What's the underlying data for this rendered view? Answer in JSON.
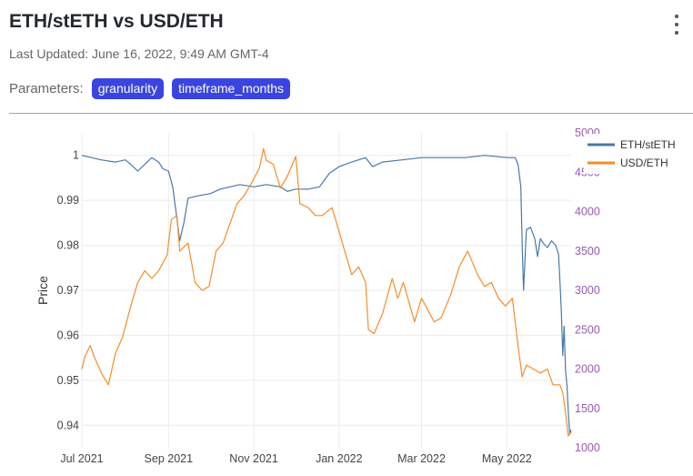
{
  "header": {
    "title": "ETH/stETH vs USD/ETH",
    "last_updated": "Last Updated: June 16, 2022, 9:49 AM GMT-4",
    "parameters_label": "Parameters:",
    "parameters": [
      "granularity",
      "timeframe_months"
    ],
    "menu_icon": "kebab-vertical-icon"
  },
  "colors": {
    "accent": "#3a45e0",
    "eth_steth": "#4a78a8",
    "usd_eth": "#f28e2b",
    "right_axis": "#9b59b6"
  },
  "chart_data": {
    "type": "line",
    "ylabel": "Price",
    "ylim": [
      0.935,
      1.005
    ],
    "y_ticks": [
      1,
      0.99,
      0.98,
      0.97,
      0.96,
      0.95,
      0.94
    ],
    "y_tick_labels": [
      "1",
      "0.99",
      "0.98",
      "0.97",
      "0.96",
      "0.95",
      "0.94"
    ],
    "y2lim": [
      1000,
      5000
    ],
    "y2_ticks": [
      5000,
      4500,
      4000,
      3500,
      3000,
      2500,
      2000,
      1500,
      1000
    ],
    "y2_tick_labels": [
      "5000",
      "4500",
      "4000",
      "3500",
      "3000",
      "2500",
      "2000",
      "1500",
      "1000"
    ],
    "xlim": [
      "2021-07-01",
      "2022-06-16"
    ],
    "x_ticks": [
      "2021-07-01",
      "2021-09-01",
      "2021-11-01",
      "2022-01-01",
      "2022-03-01",
      "2022-05-01"
    ],
    "x_tick_labels": [
      "Jul 2021",
      "Sep 2021",
      "Nov 2021",
      "Jan 2022",
      "Mar 2022",
      "May 2022"
    ],
    "grid": true,
    "legend_position": "top-right",
    "series": [
      {
        "name": "ETH/stETH",
        "axis": "left",
        "points": [
          [
            "2021-07-01",
            1.0
          ],
          [
            "2021-07-08",
            0.9995
          ],
          [
            "2021-07-15",
            0.999
          ],
          [
            "2021-07-25",
            0.9985
          ],
          [
            "2021-08-01",
            0.999
          ],
          [
            "2021-08-05",
            0.998
          ],
          [
            "2021-08-10",
            0.9965
          ],
          [
            "2021-08-15",
            0.998
          ],
          [
            "2021-08-20",
            0.9995
          ],
          [
            "2021-08-25",
            0.9985
          ],
          [
            "2021-08-28",
            0.997
          ],
          [
            "2021-09-01",
            0.9965
          ],
          [
            "2021-09-04",
            0.993
          ],
          [
            "2021-09-07",
            0.986
          ],
          [
            "2021-09-09",
            0.981
          ],
          [
            "2021-09-12",
            0.985
          ],
          [
            "2021-09-15",
            0.9905
          ],
          [
            "2021-09-22",
            0.991
          ],
          [
            "2021-10-01",
            0.9915
          ],
          [
            "2021-10-08",
            0.9925
          ],
          [
            "2021-10-15",
            0.993
          ],
          [
            "2021-10-22",
            0.9935
          ],
          [
            "2021-11-01",
            0.993
          ],
          [
            "2021-11-10",
            0.9935
          ],
          [
            "2021-11-20",
            0.993
          ],
          [
            "2021-11-25",
            0.992
          ],
          [
            "2021-12-01",
            0.9925
          ],
          [
            "2021-12-10",
            0.9925
          ],
          [
            "2021-12-18",
            0.993
          ],
          [
            "2021-12-25",
            0.996
          ],
          [
            "2022-01-01",
            0.9975
          ],
          [
            "2022-01-10",
            0.9985
          ],
          [
            "2022-01-20",
            0.9995
          ],
          [
            "2022-01-25",
            0.9975
          ],
          [
            "2022-02-01",
            0.9985
          ],
          [
            "2022-02-15",
            0.999
          ],
          [
            "2022-03-01",
            0.9995
          ],
          [
            "2022-03-15",
            0.9995
          ],
          [
            "2022-04-01",
            0.9995
          ],
          [
            "2022-04-15",
            1.0
          ],
          [
            "2022-05-01",
            0.9995
          ],
          [
            "2022-05-07",
            0.9995
          ],
          [
            "2022-05-09",
            0.998
          ],
          [
            "2022-05-11",
            0.993
          ],
          [
            "2022-05-12",
            0.98
          ],
          [
            "2022-05-13",
            0.97
          ],
          [
            "2022-05-15",
            0.9835
          ],
          [
            "2022-05-18",
            0.984
          ],
          [
            "2022-05-21",
            0.9815
          ],
          [
            "2022-05-23",
            0.9775
          ],
          [
            "2022-05-25",
            0.9815
          ],
          [
            "2022-05-27",
            0.9805
          ],
          [
            "2022-05-30",
            0.9795
          ],
          [
            "2022-06-02",
            0.981
          ],
          [
            "2022-06-05",
            0.98
          ],
          [
            "2022-06-07",
            0.978
          ],
          [
            "2022-06-08",
            0.972
          ],
          [
            "2022-06-09",
            0.9655
          ],
          [
            "2022-06-10",
            0.9555
          ],
          [
            "2022-06-11",
            0.962
          ],
          [
            "2022-06-12",
            0.952
          ],
          [
            "2022-06-13",
            0.949
          ],
          [
            "2022-06-14",
            0.943
          ],
          [
            "2022-06-15",
            0.938
          ],
          [
            "2022-06-16",
            0.939
          ]
        ]
      },
      {
        "name": "USD/ETH",
        "axis": "right",
        "points": [
          [
            "2021-07-01",
            2000
          ],
          [
            "2021-07-03",
            2150
          ],
          [
            "2021-07-07",
            2300
          ],
          [
            "2021-07-10",
            2150
          ],
          [
            "2021-07-15",
            1950
          ],
          [
            "2021-07-20",
            1800
          ],
          [
            "2021-07-25",
            2200
          ],
          [
            "2021-07-30",
            2400
          ],
          [
            "2021-08-05",
            2800
          ],
          [
            "2021-08-10",
            3100
          ],
          [
            "2021-08-15",
            3250
          ],
          [
            "2021-08-20",
            3150
          ],
          [
            "2021-08-25",
            3250
          ],
          [
            "2021-08-31",
            3450
          ],
          [
            "2021-09-03",
            3900
          ],
          [
            "2021-09-07",
            3950
          ],
          [
            "2021-09-09",
            3500
          ],
          [
            "2021-09-15",
            3600
          ],
          [
            "2021-09-20",
            3100
          ],
          [
            "2021-09-25",
            3000
          ],
          [
            "2021-09-30",
            3050
          ],
          [
            "2021-10-05",
            3500
          ],
          [
            "2021-10-10",
            3600
          ],
          [
            "2021-10-15",
            3850
          ],
          [
            "2021-10-20",
            4100
          ],
          [
            "2021-10-25",
            4200
          ],
          [
            "2021-10-30",
            4350
          ],
          [
            "2021-11-05",
            4550
          ],
          [
            "2021-11-08",
            4800
          ],
          [
            "2021-11-10",
            4650
          ],
          [
            "2021-11-15",
            4600
          ],
          [
            "2021-11-20",
            4300
          ],
          [
            "2021-11-25",
            4450
          ],
          [
            "2021-12-01",
            4700
          ],
          [
            "2021-12-04",
            4100
          ],
          [
            "2021-12-10",
            4050
          ],
          [
            "2021-12-15",
            3950
          ],
          [
            "2021-12-20",
            3950
          ],
          [
            "2021-12-27",
            4050
          ],
          [
            "2022-01-01",
            3750
          ],
          [
            "2022-01-05",
            3500
          ],
          [
            "2022-01-10",
            3200
          ],
          [
            "2022-01-15",
            3300
          ],
          [
            "2022-01-20",
            3100
          ],
          [
            "2022-01-22",
            2500
          ],
          [
            "2022-01-26",
            2450
          ],
          [
            "2022-02-01",
            2700
          ],
          [
            "2022-02-08",
            3150
          ],
          [
            "2022-02-12",
            2900
          ],
          [
            "2022-02-16",
            3100
          ],
          [
            "2022-02-24",
            2600
          ],
          [
            "2022-03-01",
            2900
          ],
          [
            "2022-03-10",
            2600
          ],
          [
            "2022-03-15",
            2650
          ],
          [
            "2022-03-22",
            2950
          ],
          [
            "2022-03-28",
            3300
          ],
          [
            "2022-04-03",
            3500
          ],
          [
            "2022-04-10",
            3200
          ],
          [
            "2022-04-15",
            3050
          ],
          [
            "2022-04-20",
            3100
          ],
          [
            "2022-04-25",
            2900
          ],
          [
            "2022-04-30",
            2800
          ],
          [
            "2022-05-05",
            2900
          ],
          [
            "2022-05-09",
            2300
          ],
          [
            "2022-05-12",
            1900
          ],
          [
            "2022-05-15",
            2050
          ],
          [
            "2022-05-20",
            2000
          ],
          [
            "2022-05-25",
            1950
          ],
          [
            "2022-05-30",
            2000
          ],
          [
            "2022-06-03",
            1800
          ],
          [
            "2022-06-08",
            1800
          ],
          [
            "2022-06-10",
            1700
          ],
          [
            "2022-06-12",
            1450
          ],
          [
            "2022-06-14",
            1150
          ],
          [
            "2022-06-16",
            1200
          ]
        ]
      }
    ]
  }
}
